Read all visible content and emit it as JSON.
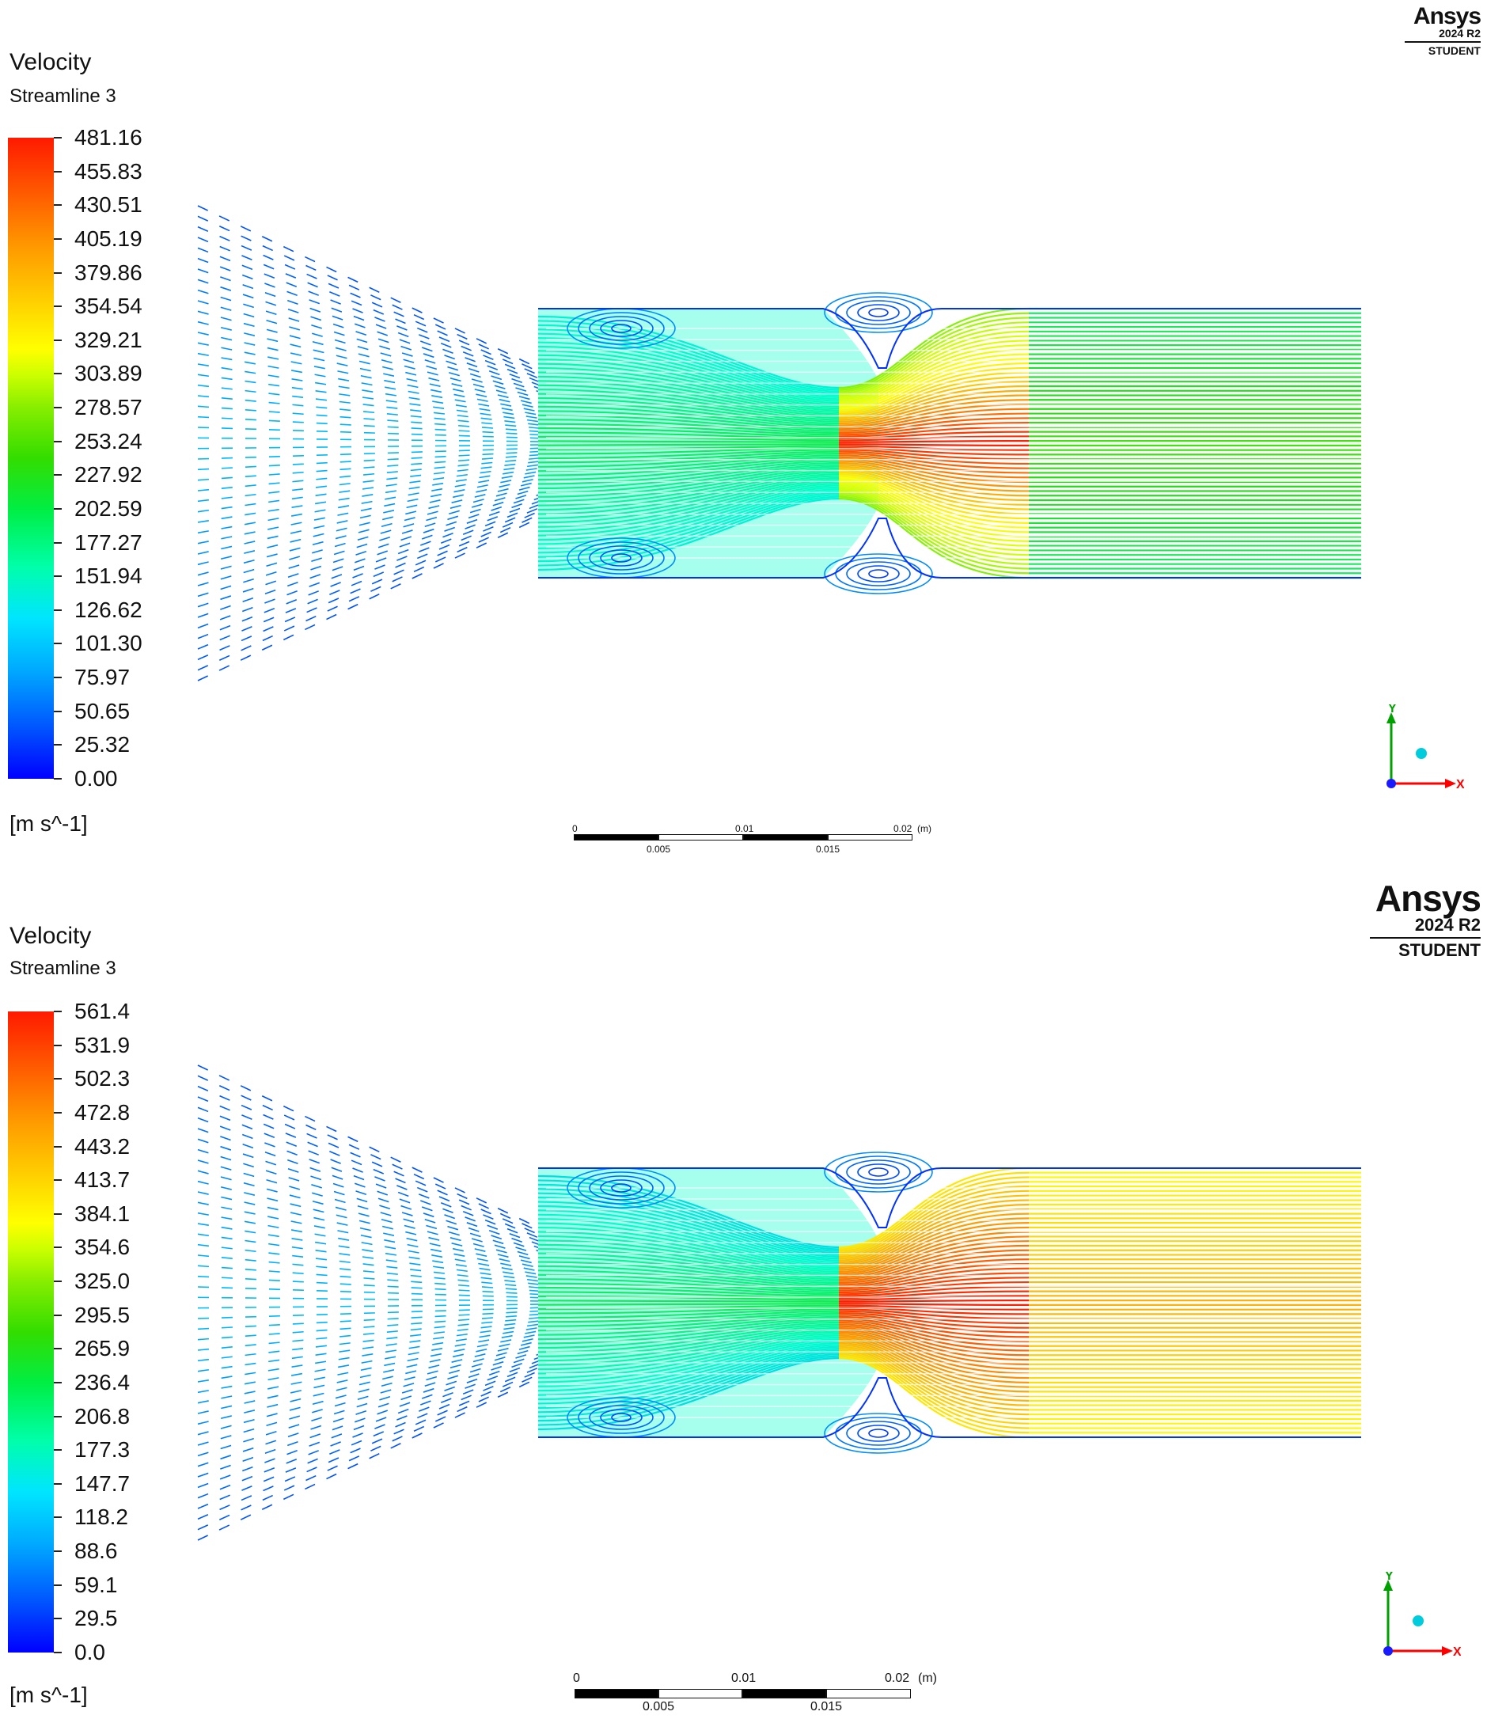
{
  "panels": [
    {
      "title": "Velocity",
      "subtitle": "Streamline 3",
      "units": "[m s^-1]",
      "legend_values": [
        "481.16",
        "455.83",
        "430.51",
        "405.19",
        "379.86",
        "354.54",
        "329.21",
        "303.89",
        "278.57",
        "253.24",
        "227.92",
        "202.59",
        "177.27",
        "151.94",
        "126.62",
        "101.30",
        "75.97",
        "50.65",
        "25.32",
        "0.00"
      ],
      "logo": {
        "brand": "Ansys",
        "version": "2024 R2",
        "edition": "STUDENT"
      },
      "scale_bar": {
        "top_labels": [
          "0",
          "0.01",
          "0.02",
          "(m)"
        ],
        "bottom_labels": [
          "0.005",
          "0.015"
        ]
      },
      "axes": {
        "y": "Y",
        "x": "X"
      },
      "max_velocity": 481.16
    },
    {
      "title": "Velocity",
      "subtitle": "Streamline 3",
      "units": "[m s^-1]",
      "legend_values": [
        "561.4",
        "531.9",
        "502.3",
        "472.8",
        "443.2",
        "413.7",
        "384.1",
        "354.6",
        "325.0",
        "295.5",
        "265.9",
        "236.4",
        "206.8",
        "177.3",
        "147.7",
        "118.2",
        "88.6",
        "59.1",
        "29.5",
        "0.0"
      ],
      "logo": {
        "brand": "Ansys",
        "version": "2024 R2",
        "edition": "STUDENT"
      },
      "scale_bar": {
        "top_labels": [
          "0",
          "0.01",
          "0.02",
          "(m)"
        ],
        "bottom_labels": [
          "0.005",
          "0.015"
        ]
      },
      "axes": {
        "y": "Y",
        "x": "X"
      },
      "max_velocity": 561.4
    }
  ],
  "colors": {
    "low": "#0000ff",
    "mid": "#33dd00",
    "high": "#ff1a00",
    "axis_y": "#00a000",
    "axis_x": "#ff0000",
    "axis_origin": "#1a1aff",
    "marker": "#00ccdd"
  }
}
